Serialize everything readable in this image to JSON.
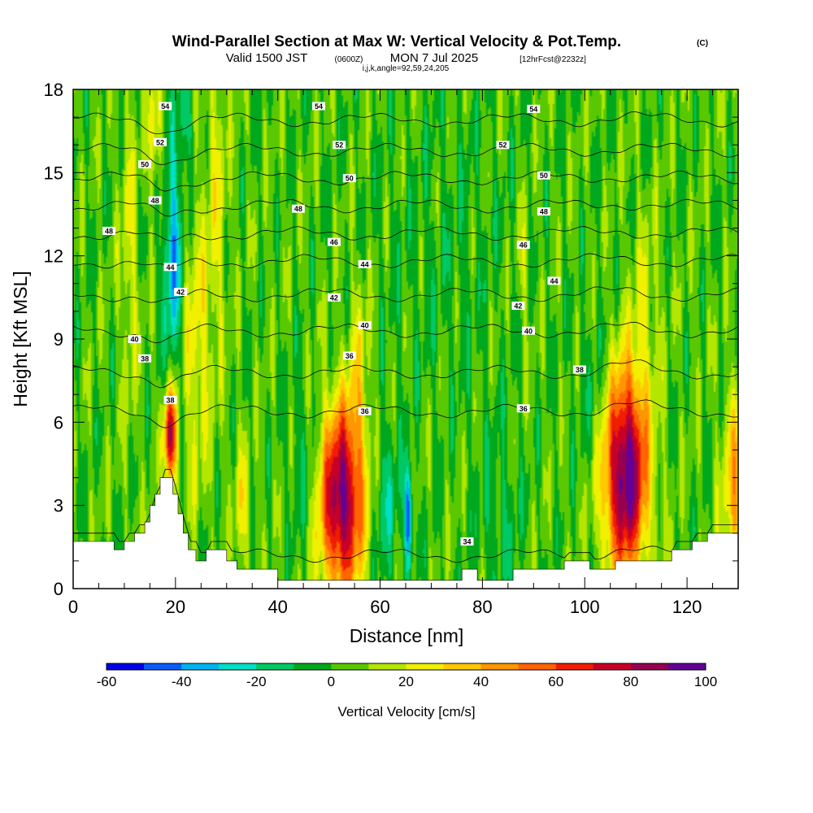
{
  "chart_data": {
    "type": "heatmap",
    "title": {
      "main": "Wind-Parallel Section at Max W: Vertical Velocity & Pot.Temp.",
      "main_suffix": "(C)",
      "valid": "Valid 1500 JST",
      "valid_utc": "(0600Z)",
      "valid_date": "MON 7 Jul 2025",
      "valid_fcst": "[12hrFcst@2232z]",
      "indices": "i,j,k,angle=92,59,24,205"
    },
    "xlabel": "Distance [nm]",
    "ylabel": "Height [Kft MSL]",
    "xlim": [
      0,
      130
    ],
    "ylim": [
      0,
      18
    ],
    "xticks": [
      "0",
      "20",
      "40",
      "60",
      "80",
      "100",
      "120"
    ],
    "yticks": [
      "0",
      "3",
      "6",
      "9",
      "12",
      "15",
      "18"
    ],
    "colorbar": {
      "label": "Vertical Velocity [cm/s]",
      "tick_labels": [
        "-60",
        "-40",
        "-20",
        "0",
        "20",
        "40",
        "60",
        "80",
        "100"
      ],
      "range": [
        -60,
        100
      ],
      "step": 10,
      "colors": [
        "#0000e8",
        "#0a5cf5",
        "#00b4f0",
        "#00e0c8",
        "#00c864",
        "#00a81e",
        "#5ac800",
        "#b4e600",
        "#f0f000",
        "#ffc800",
        "#ff9600",
        "#ff6400",
        "#f01e00",
        "#c80028",
        "#960050",
        "#640096"
      ]
    },
    "background_w": 3,
    "updrafts": [
      {
        "x": 52.5,
        "y": 3.2,
        "sx": 3.0,
        "sy": 2.4,
        "w": 90
      },
      {
        "x": 108.0,
        "y": 4.2,
        "sx": 3.0,
        "sy": 2.6,
        "w": 97
      },
      {
        "x": 19.0,
        "y": 5.5,
        "sx": 0.9,
        "sy": 1.2,
        "w": 78
      },
      {
        "x": 24.0,
        "y": 8.5,
        "sx": 2.0,
        "sy": 3.5,
        "w": 22
      },
      {
        "x": 11.0,
        "y": 12.0,
        "sx": 1.2,
        "sy": 4.0,
        "w": 18
      },
      {
        "x": 130.0,
        "y": 3.5,
        "sx": 2.0,
        "sy": 2.5,
        "w": 40
      },
      {
        "x": 28.0,
        "y": 14.0,
        "sx": 1.5,
        "sy": 4.0,
        "w": 18
      },
      {
        "x": 56.0,
        "y": 8.0,
        "sx": 1.5,
        "sy": 2.5,
        "w": 18
      },
      {
        "x": 88.0,
        "y": 11.5,
        "sx": 0.8,
        "sy": 1.5,
        "w": 15
      },
      {
        "x": 33.0,
        "y": 3.0,
        "sx": 1.0,
        "sy": 1.5,
        "w": 22
      },
      {
        "x": 112.0,
        "y": 10.5,
        "sx": 2.0,
        "sy": 2.5,
        "w": 12
      },
      {
        "x": 16.0,
        "y": 16.5,
        "sx": 1.0,
        "sy": 1.5,
        "w": 25
      }
    ],
    "downdrafts": [
      {
        "x": 19.5,
        "y": 12.0,
        "sx": 1.3,
        "sy": 3.0,
        "w": -38
      },
      {
        "x": 22.0,
        "y": 17.0,
        "sx": 1.0,
        "sy": 1.2,
        "w": -20
      },
      {
        "x": 65.5,
        "y": 2.6,
        "sx": 0.6,
        "sy": 1.2,
        "w": -50
      },
      {
        "x": 61.0,
        "y": 3.0,
        "sx": 2.0,
        "sy": 2.0,
        "w": -18
      },
      {
        "x": 45.0,
        "y": 4.5,
        "sx": 2.0,
        "sy": 2.0,
        "w": -12
      },
      {
        "x": 83.0,
        "y": 2.5,
        "sx": 3.0,
        "sy": 2.0,
        "w": -12
      },
      {
        "x": 102.0,
        "y": 7.0,
        "sx": 3.0,
        "sy": 2.0,
        "w": -10
      },
      {
        "x": 72.0,
        "y": 12.0,
        "sx": 10.0,
        "sy": 4.0,
        "w": -6
      }
    ],
    "terrain": [
      [
        0,
        1.7
      ],
      [
        5,
        1.7
      ],
      [
        8,
        1.7
      ],
      [
        8,
        1.4
      ],
      [
        10,
        1.4
      ],
      [
        10,
        1.7
      ],
      [
        12,
        1.7
      ],
      [
        12,
        2.0
      ],
      [
        14,
        2.0
      ],
      [
        14,
        2.4
      ],
      [
        15,
        2.4
      ],
      [
        15,
        3.0
      ],
      [
        16,
        3.0
      ],
      [
        16,
        3.4
      ],
      [
        17,
        3.4
      ],
      [
        17,
        4.0
      ],
      [
        19.5,
        4.0
      ],
      [
        19.5,
        3.4
      ],
      [
        20.5,
        3.4
      ],
      [
        20.5,
        2.7
      ],
      [
        21.5,
        2.7
      ],
      [
        21.5,
        2.0
      ],
      [
        22.5,
        2.0
      ],
      [
        22.5,
        1.4
      ],
      [
        24,
        1.4
      ],
      [
        24,
        1.0
      ],
      [
        26,
        1.0
      ],
      [
        26,
        1.4
      ],
      [
        30,
        1.4
      ],
      [
        30,
        1.0
      ],
      [
        32,
        1.0
      ],
      [
        32,
        0.7
      ],
      [
        40,
        0.7
      ],
      [
        40,
        0.3
      ],
      [
        47,
        0.3
      ],
      [
        47,
        0.3
      ],
      [
        76,
        0.3
      ],
      [
        76,
        0.7
      ],
      [
        79,
        0.7
      ],
      [
        79,
        0.3
      ],
      [
        86,
        0.3
      ],
      [
        86,
        0.7
      ],
      [
        96,
        0.7
      ],
      [
        96,
        1.0
      ],
      [
        101,
        1.0
      ],
      [
        101,
        0.7
      ],
      [
        106,
        0.7
      ],
      [
        106,
        1.0
      ],
      [
        117,
        1.0
      ],
      [
        117,
        1.4
      ],
      [
        121,
        1.4
      ],
      [
        121,
        1.7
      ],
      [
        124,
        1.7
      ],
      [
        124,
        2.0
      ],
      [
        130,
        2.0
      ]
    ],
    "isentropes": {
      "levels": [
        34,
        36,
        38,
        40,
        42,
        44,
        46,
        48,
        50,
        52,
        54
      ],
      "heights_at_x60": [
        1.2,
        6.4,
        7.8,
        9.3,
        10.6,
        11.8,
        12.8,
        13.8,
        14.8,
        15.8,
        16.9
      ],
      "labels": [
        {
          "text": "54",
          "x": 18,
          "y": 17.4
        },
        {
          "text": "54",
          "x": 48,
          "y": 17.4
        },
        {
          "text": "54",
          "x": 90,
          "y": 17.3
        },
        {
          "text": "52",
          "x": 17,
          "y": 16.1
        },
        {
          "text": "52",
          "x": 52,
          "y": 16.0
        },
        {
          "text": "52",
          "x": 84,
          "y": 16.0
        },
        {
          "text": "50",
          "x": 14,
          "y": 15.3
        },
        {
          "text": "50",
          "x": 54,
          "y": 14.8
        },
        {
          "text": "50",
          "x": 92,
          "y": 14.9
        },
        {
          "text": "48",
          "x": 16,
          "y": 14.0
        },
        {
          "text": "48",
          "x": 44,
          "y": 13.7
        },
        {
          "text": "48",
          "x": 92,
          "y": 13.6
        },
        {
          "text": "48",
          "x": 7,
          "y": 12.9
        },
        {
          "text": "46",
          "x": 51,
          "y": 12.5
        },
        {
          "text": "46",
          "x": 88,
          "y": 12.4
        },
        {
          "text": "44",
          "x": 19,
          "y": 11.6
        },
        {
          "text": "44",
          "x": 57,
          "y": 11.7
        },
        {
          "text": "44",
          "x": 94,
          "y": 11.1
        },
        {
          "text": "42",
          "x": 21,
          "y": 10.7
        },
        {
          "text": "42",
          "x": 51,
          "y": 10.5
        },
        {
          "text": "42",
          "x": 87,
          "y": 10.2
        },
        {
          "text": "40",
          "x": 12,
          "y": 9.0
        },
        {
          "text": "40",
          "x": 57,
          "y": 9.5
        },
        {
          "text": "40",
          "x": 89,
          "y": 9.3
        },
        {
          "text": "38",
          "x": 14,
          "y": 8.3
        },
        {
          "text": "36",
          "x": 54,
          "y": 8.4
        },
        {
          "text": "38",
          "x": 99,
          "y": 7.9
        },
        {
          "text": "38",
          "x": 19,
          "y": 6.8
        },
        {
          "text": "36",
          "x": 57,
          "y": 6.4
        },
        {
          "text": "36",
          "x": 88,
          "y": 6.5
        },
        {
          "text": "34",
          "x": 77,
          "y": 1.7
        }
      ]
    }
  }
}
